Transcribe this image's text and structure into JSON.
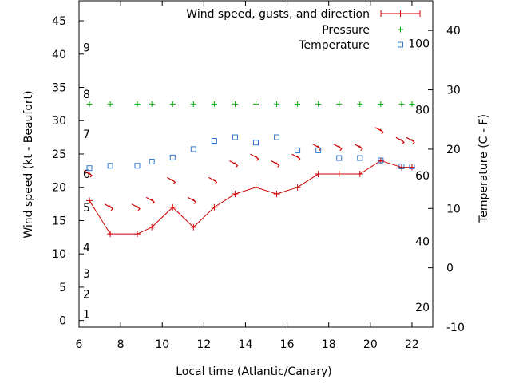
{
  "chart_data": {
    "type": "line",
    "xlabel": "Local time (Atlantic/Canary)",
    "ylabel": "Wind speed (kt - Beaufort)",
    "y2label": "Temperature (C - F)",
    "xlim": [
      6,
      23
    ],
    "ylim": [
      -1,
      48
    ],
    "y2lim": [
      -10,
      45
    ],
    "x_ticks": [
      6,
      8,
      10,
      12,
      14,
      16,
      18,
      20,
      22
    ],
    "y_ticks": [
      0,
      5,
      10,
      15,
      20,
      25,
      30,
      35,
      40,
      45
    ],
    "y2_ticks": [
      -10,
      0,
      10,
      20,
      30,
      40
    ],
    "beaufort_labels": [
      {
        "label": "1",
        "kt": 1
      },
      {
        "label": "2",
        "kt": 4
      },
      {
        "label": "3",
        "kt": 7
      },
      {
        "label": "4",
        "kt": 11
      },
      {
        "label": "5",
        "kt": 17
      },
      {
        "label": "6",
        "kt": 22
      },
      {
        "label": "7",
        "kt": 28
      },
      {
        "label": "8",
        "kt": 34
      },
      {
        "label": "9",
        "kt": 41
      }
    ],
    "fahrenheit_labels": [
      {
        "label": "20",
        "f": 20
      },
      {
        "label": "40",
        "f": 40
      },
      {
        "label": "60",
        "f": 60
      },
      {
        "label": "80",
        "f": 80
      },
      {
        "label": "100",
        "f": 100
      }
    ],
    "legend_position": "top-right",
    "grid": false,
    "series": [
      {
        "name": "Wind speed, gusts, and direction",
        "style": "line-cross",
        "color": "#cc0000",
        "x": [
          6.5,
          7.5,
          8.8,
          9.5,
          10.5,
          11.5,
          12.5,
          13.5,
          14.5,
          15.5,
          16.5,
          17.5,
          18.5,
          19.5,
          20.5,
          21.5,
          22.0
        ],
        "y": [
          18,
          13,
          13,
          14,
          17,
          14,
          17,
          19,
          20,
          19,
          20,
          22,
          22,
          22,
          24,
          23,
          23
        ],
        "direction_marks_y": [
          22,
          17,
          17,
          18,
          21,
          18,
          21,
          23.5,
          24.5,
          23.5,
          24.5,
          26,
          26,
          26,
          28.5,
          27,
          27
        ]
      },
      {
        "name": "Pressure",
        "style": "plus",
        "color": "#00aa00",
        "x": [
          6.5,
          7.5,
          8.8,
          9.5,
          10.5,
          11.5,
          12.5,
          13.5,
          14.5,
          15.5,
          16.5,
          17.5,
          18.5,
          19.5,
          20.5,
          21.5,
          22.0
        ],
        "y": [
          32.5,
          32.5,
          32.5,
          32.5,
          32.5,
          32.5,
          32.5,
          32.5,
          32.5,
          32.5,
          32.5,
          32.5,
          32.5,
          32.5,
          32.5,
          32.5,
          32.5
        ]
      },
      {
        "name": "Temperature",
        "style": "square",
        "color": "#3377cc",
        "x": [
          6.5,
          7.5,
          8.8,
          9.5,
          10.5,
          11.5,
          12.5,
          13.5,
          14.5,
          15.5,
          16.5,
          17.5,
          18.5,
          19.5,
          20.5,
          21.5,
          22.0
        ],
        "y": [
          16.8,
          17.2,
          17.2,
          17.9,
          18.6,
          20.0,
          21.4,
          22.0,
          21.1,
          22.0,
          19.8,
          19.8,
          18.5,
          18.5,
          18.1,
          17.1,
          17.1
        ]
      }
    ]
  }
}
